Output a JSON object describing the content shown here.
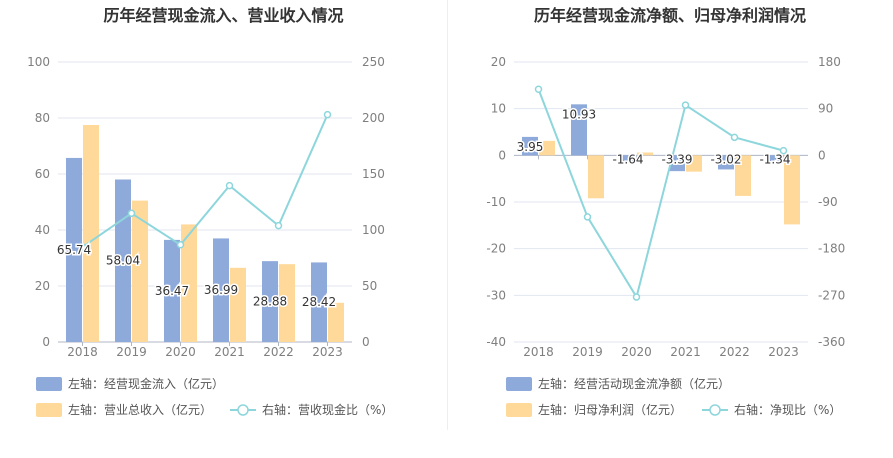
{
  "chart_data": [
    {
      "type": "bar",
      "title": "历年经营现金流入、营业收入情况",
      "categories": [
        "2018",
        "2019",
        "2020",
        "2021",
        "2022",
        "2023"
      ],
      "left_axis": {
        "ylim": [
          0,
          100
        ],
        "ticks": [
          "100",
          "80",
          "60",
          "40",
          "20",
          "0"
        ]
      },
      "right_axis": {
        "ylim": [
          0,
          250
        ],
        "ticks": [
          "250",
          "200",
          "150",
          "100",
          "50",
          "0"
        ]
      },
      "series": [
        {
          "name": "左轴：经营现金流入（亿元）",
          "type": "bar",
          "axis": "left",
          "color": "#8eaadb",
          "values": [
            65.74,
            58.04,
            36.47,
            36.99,
            28.88,
            28.42
          ],
          "labels": [
            "65.74",
            "58.04",
            "36.47",
            "36.99",
            "28.88",
            "28.42"
          ]
        },
        {
          "name": "左轴：营业总收入（亿元）",
          "type": "bar",
          "axis": "left",
          "color": "#ffd99a",
          "values": [
            77.5,
            50.5,
            42.0,
            26.5,
            27.8,
            14.0
          ]
        },
        {
          "name": "右轴：营收现金比（%）",
          "type": "line",
          "axis": "right",
          "color": "#8dd6dc",
          "values": [
            84.8,
            114.9,
            86.8,
            139.6,
            103.9,
            203.0
          ]
        }
      ]
    },
    {
      "type": "bar",
      "title": "历年经营现金流净额、归母净利润情况",
      "categories": [
        "2018",
        "2019",
        "2020",
        "2021",
        "2022",
        "2023"
      ],
      "left_axis": {
        "ylim": [
          -40,
          20
        ],
        "ticks": [
          "20",
          "10",
          "0",
          "-10",
          "-20",
          "-30",
          "-40"
        ]
      },
      "right_axis": {
        "ylim": [
          -360,
          180
        ],
        "ticks": [
          "180",
          "90",
          "0",
          "-90",
          "-180",
          "-270",
          "-360"
        ]
      },
      "series": [
        {
          "name": "左轴：经营活动现金流净额（亿元）",
          "type": "bar",
          "axis": "left",
          "color": "#8eaadb",
          "values": [
            3.95,
            10.93,
            -1.64,
            -3.39,
            -3.02,
            -1.34
          ],
          "labels": [
            "3.95",
            "10.93",
            "-1.64",
            "-3.39",
            "-3.02",
            "-1.34"
          ]
        },
        {
          "name": "左轴：归母净利润（亿元）",
          "type": "bar",
          "axis": "left",
          "color": "#ffd99a",
          "values": [
            3.1,
            -9.2,
            0.6,
            -3.5,
            -8.7,
            -14.8
          ]
        },
        {
          "name": "右轴：净现比（%）",
          "type": "line",
          "axis": "right",
          "color": "#8dd6dc",
          "values": [
            127.4,
            -118.8,
            -273.3,
            96.9,
            34.7,
            9.1
          ]
        }
      ]
    }
  ]
}
